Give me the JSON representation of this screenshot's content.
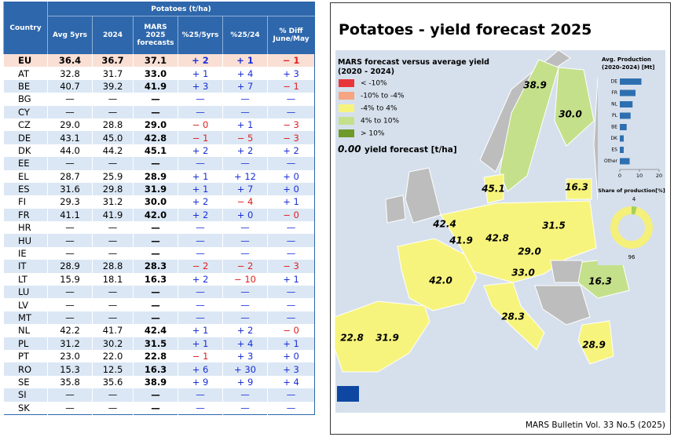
{
  "table": {
    "group_header": "Potatoes (t/ha)",
    "columns": [
      "Country",
      "Avg 5yrs",
      "2024",
      "MARS 2025 forecasts",
      "%25/5yrs",
      "%25/24",
      "% Diff June/May"
    ],
    "rows": [
      [
        "EU",
        "36.4",
        "36.7",
        "37.1",
        "+ 2",
        "+ 1",
        "− 1"
      ],
      [
        "AT",
        "32.8",
        "31.7",
        "33.0",
        "+ 1",
        "+ 4",
        "+ 3"
      ],
      [
        "BE",
        "40.7",
        "39.2",
        "41.9",
        "+ 3",
        "+ 7",
        "− 1"
      ],
      [
        "BG",
        "—",
        "—",
        "—",
        "—",
        "—",
        "—"
      ],
      [
        "CY",
        "—",
        "—",
        "—",
        "—",
        "—",
        "—"
      ],
      [
        "CZ",
        "29.0",
        "28.8",
        "29.0",
        "− 0",
        "+ 1",
        "− 3"
      ],
      [
        "DE",
        "43.1",
        "45.0",
        "42.8",
        "− 1",
        "− 5",
        "− 3"
      ],
      [
        "DK",
        "44.0",
        "44.2",
        "45.1",
        "+ 2",
        "+ 2",
        "+ 2"
      ],
      [
        "EE",
        "—",
        "—",
        "—",
        "—",
        "—",
        "—"
      ],
      [
        "EL",
        "28.7",
        "25.9",
        "28.9",
        "+ 1",
        "+ 12",
        "+ 0"
      ],
      [
        "ES",
        "31.6",
        "29.8",
        "31.9",
        "+ 1",
        "+ 7",
        "+ 0"
      ],
      [
        "FI",
        "29.3",
        "31.2",
        "30.0",
        "+ 2",
        "− 4",
        "+ 1"
      ],
      [
        "FR",
        "41.1",
        "41.9",
        "42.0",
        "+ 2",
        "+ 0",
        "− 0"
      ],
      [
        "HR",
        "—",
        "—",
        "—",
        "—",
        "—",
        "—"
      ],
      [
        "HU",
        "—",
        "—",
        "—",
        "—",
        "—",
        "—"
      ],
      [
        "IE",
        "—",
        "—",
        "—",
        "—",
        "—",
        "—"
      ],
      [
        "IT",
        "28.9",
        "28.8",
        "28.3",
        "− 2",
        "− 2",
        "− 3"
      ],
      [
        "LT",
        "15.9",
        "18.1",
        "16.3",
        "+ 2",
        "− 10",
        "+ 1"
      ],
      [
        "LU",
        "—",
        "—",
        "—",
        "—",
        "—",
        "—"
      ],
      [
        "LV",
        "—",
        "—",
        "—",
        "—",
        "—",
        "—"
      ],
      [
        "MT",
        "—",
        "—",
        "—",
        "—",
        "—",
        "—"
      ],
      [
        "NL",
        "42.2",
        "41.7",
        "42.4",
        "+ 1",
        "+ 2",
        "− 0"
      ],
      [
        "PL",
        "31.2",
        "30.2",
        "31.5",
        "+ 1",
        "+ 4",
        "+ 1"
      ],
      [
        "PT",
        "23.0",
        "22.0",
        "22.8",
        "− 1",
        "+ 3",
        "+ 0"
      ],
      [
        "RO",
        "15.3",
        "12.5",
        "16.3",
        "+ 6",
        "+ 30",
        "+ 3"
      ],
      [
        "SE",
        "35.8",
        "35.6",
        "38.9",
        "+ 9",
        "+ 9",
        "+ 4"
      ],
      [
        "SI",
        "—",
        "—",
        "—",
        "—",
        "—",
        "—"
      ],
      [
        "SK",
        "—",
        "—",
        "—",
        "—",
        "—",
        "—"
      ]
    ]
  },
  "map": {
    "title": "Potatoes - yield forecast 2025",
    "legend": {
      "title": [
        "MARS forecast versus average yield",
        "(2020 - 2024)"
      ],
      "items": [
        {
          "label": "< -10%",
          "color": "#e8353a"
        },
        {
          "label": "-10% to -4%",
          "color": "#f5a582"
        },
        {
          "label": "-4% to 4%",
          "color": "#f7f47d"
        },
        {
          "label": "4% to 10%",
          "color": "#c4e08a"
        },
        {
          "label": "> 10%",
          "color": "#6e9a2a"
        }
      ],
      "sample_value": "0.00",
      "sample_text": "yield forecast [t/ha]"
    },
    "labels": [
      "38.9",
      "30.0",
      "45.1",
      "16.3",
      "42.4",
      "41.9",
      "42.8",
      "31.5",
      "29.0",
      "33.0",
      "16.3",
      "42.0",
      "28.3",
      "22.8",
      "31.9",
      "28.9"
    ],
    "footer": "MARS Bulletin Vol. 33 No.5 (2025)"
  },
  "chart_data": [
    {
      "type": "bar",
      "title": [
        "Avg. Production",
        "(2020-2024) [Mt]"
      ],
      "categories": [
        "DE",
        "FR",
        "NL",
        "PL",
        "BE",
        "DK",
        "ES",
        "Other"
      ],
      "values": [
        11,
        8,
        6.5,
        5.5,
        3.5,
        2,
        2,
        5
      ],
      "color": "#2e6fb0",
      "xlim": [
        0,
        20
      ],
      "xticks": [
        0,
        10,
        20
      ]
    },
    {
      "type": "pie",
      "title": "Share of production[%]",
      "values": [
        4,
        96
      ],
      "colors": [
        "#a6d05a",
        "#f4f07a"
      ]
    }
  ]
}
